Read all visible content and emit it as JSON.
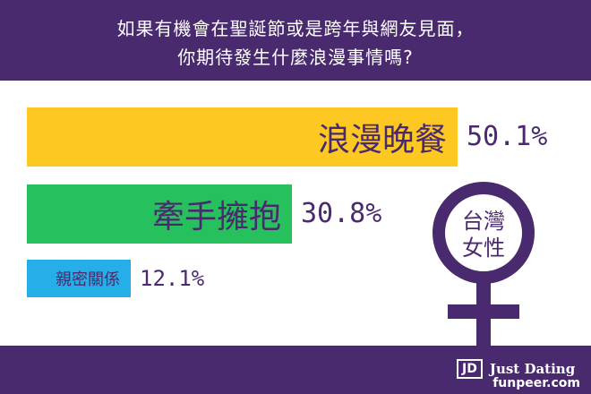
{
  "question": {
    "line1": "如果有機會在聖誕節或是跨年與網友見面，",
    "line2": "你期待發生什麼浪漫事情嗎?"
  },
  "chart_data": {
    "type": "bar",
    "orientation": "horizontal",
    "categories": [
      "浪漫晚餐",
      "牽手擁抱",
      "親密關係"
    ],
    "values": [
      50.1,
      30.8,
      12.1
    ],
    "value_labels": [
      "50.1%",
      "30.8%",
      "12.1%"
    ],
    "colors": [
      "#fcc821",
      "#26c05c",
      "#25aee7"
    ],
    "xlim": [
      0,
      100
    ],
    "grid": false,
    "legend": "none"
  },
  "symbol": {
    "line1": "台灣",
    "line2": "女性",
    "color": "#4a2a6e"
  },
  "footer": {
    "jd": "JD",
    "brand": "Just Dating",
    "watermark": "funpeer.com"
  },
  "colors": {
    "purple": "#4a2a6e",
    "white": "#ffffff"
  }
}
